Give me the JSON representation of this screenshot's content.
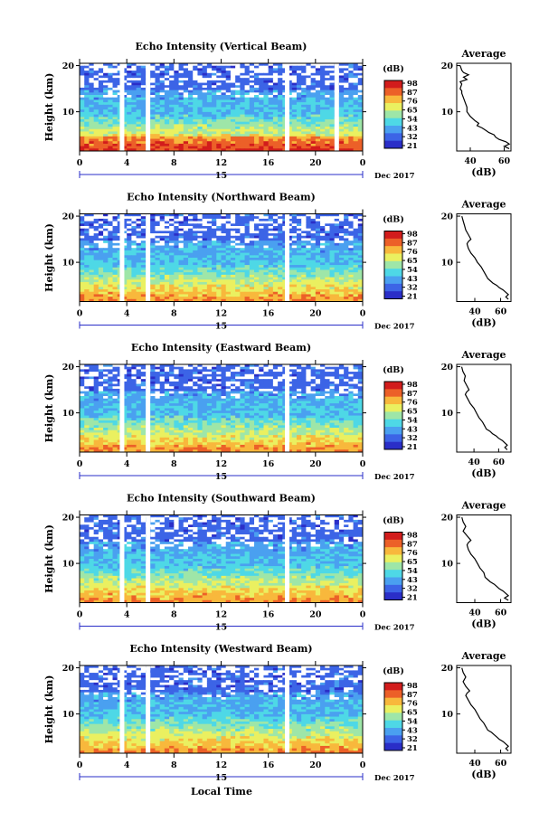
{
  "figure": {
    "xlabel": "Local Time",
    "panels": [
      {
        "title": "Echo Intensity (Vertical Beam)"
      },
      {
        "title": "Echo Intensity (Northward Beam)"
      },
      {
        "title": "Echo Intensity (Eastward Beam)"
      },
      {
        "title": "Echo Intensity (Southward Beam)"
      },
      {
        "title": "Echo Intensity (Westward Beam)"
      }
    ]
  },
  "colorbar": {
    "unit": "(dB)",
    "tick_labels": [
      "98",
      "87",
      "76",
      "65",
      "54",
      "43",
      "32",
      "21"
    ],
    "colors": [
      "#2a2ec8",
      "#3c64e6",
      "#4aa0f0",
      "#4ed8e6",
      "#9ee6a8",
      "#eaf060",
      "#f8b83c",
      "#ec6028",
      "#d21c1c"
    ]
  },
  "chart_data": [
    {
      "type": "heatmap",
      "title": "Echo Intensity (Vertical Beam)",
      "ylabel": "Height (km)",
      "x_tick_labels": [
        "0",
        "4",
        "8",
        "12",
        "16",
        "20",
        "0"
      ],
      "date_label": "15",
      "date_suffix": "Dec 2017",
      "y_tick_labels": [
        "20",
        "10"
      ],
      "xlim": [
        0,
        24
      ],
      "ylim": [
        1.5,
        20.5
      ],
      "data_gaps_hours": [
        3.6,
        5.8,
        17.6,
        21.8
      ],
      "colorbar_range_db": [
        21,
        98
      ],
      "profile": {
        "title": "Average",
        "xlabel": "(dB)",
        "xticks": [
          "40",
          "60"
        ],
        "yticks": [
          "20",
          "10"
        ],
        "xlim": [
          32,
          64
        ],
        "ylim": [
          1.5,
          20.5
        ],
        "heights_km": [
          20,
          19,
          18.5,
          18,
          17.5,
          17,
          16.5,
          16,
          15,
          14.5,
          14,
          13,
          12,
          11,
          10,
          9,
          8,
          7.5,
          7,
          6.5,
          6,
          5.5,
          5,
          4.5,
          4,
          3.5,
          3,
          2.5,
          2
        ],
        "db": [
          34,
          35,
          36,
          39,
          36,
          38,
          34,
          35,
          34,
          35,
          35,
          36,
          37,
          38,
          38,
          40,
          43,
          45,
          44,
          47,
          49,
          51,
          54,
          55,
          57,
          61,
          63,
          60,
          63
        ]
      }
    },
    {
      "type": "heatmap",
      "title": "Echo Intensity (Northward Beam)",
      "ylabel": "Height (km)",
      "x_tick_labels": [
        "0",
        "4",
        "8",
        "12",
        "16",
        "20",
        "0"
      ],
      "date_label": "15",
      "date_suffix": "Dec 2017",
      "y_tick_labels": [
        "20",
        "10"
      ],
      "xlim": [
        0,
        24
      ],
      "ylim": [
        1.5,
        20.5
      ],
      "data_gaps_hours": [
        3.6,
        5.8,
        17.6
      ],
      "colorbar_range_db": [
        21,
        98
      ],
      "profile": {
        "title": "Average",
        "xlabel": "(dB)",
        "xticks": [
          "40",
          "60"
        ],
        "yticks": [
          "20",
          "10"
        ],
        "xlim": [
          26,
          68
        ],
        "ylim": [
          1.5,
          20.5
        ],
        "heights_km": [
          20,
          19,
          18,
          17,
          16,
          15,
          14.5,
          14,
          13,
          12,
          11,
          10,
          9,
          8,
          7,
          6.5,
          6,
          5.5,
          5,
          4.5,
          4,
          3.5,
          3,
          2.5,
          2
        ],
        "db": [
          30,
          31,
          32,
          33,
          35,
          37,
          35,
          34,
          35,
          37,
          40,
          42,
          45,
          47,
          49,
          50,
          52,
          54,
          57,
          59,
          62,
          64,
          66,
          64,
          66
        ]
      }
    },
    {
      "type": "heatmap",
      "title": "Echo Intensity (Eastward Beam)",
      "ylabel": "Height (km)",
      "x_tick_labels": [
        "0",
        "4",
        "8",
        "12",
        "16",
        "20",
        "0"
      ],
      "date_label": "15",
      "date_suffix": "Dec 2017",
      "y_tick_labels": [
        "20",
        "10"
      ],
      "xlim": [
        0,
        24
      ],
      "ylim": [
        1.5,
        20.5
      ],
      "data_gaps_hours": [
        3.6,
        5.8,
        17.6
      ],
      "colorbar_range_db": [
        21,
        98
      ],
      "profile": {
        "title": "Average",
        "xlabel": "(dB)",
        "xticks": [
          "40",
          "60"
        ],
        "yticks": [
          "20",
          "10"
        ],
        "xlim": [
          26,
          70
        ],
        "ylim": [
          1.5,
          20.5
        ],
        "heights_km": [
          20,
          19,
          18,
          17,
          16,
          15,
          14.5,
          14,
          13,
          12,
          11,
          10,
          9,
          8,
          7,
          6.5,
          6,
          5.5,
          5,
          4.5,
          4,
          3.5,
          3,
          2.5,
          2
        ],
        "db": [
          30,
          31,
          33,
          32,
          34,
          36,
          34,
          33,
          35,
          37,
          40,
          42,
          44,
          47,
          49,
          50,
          53,
          55,
          58,
          60,
          63,
          65,
          67,
          65,
          67
        ]
      }
    },
    {
      "type": "heatmap",
      "title": "Echo Intensity (Southward Beam)",
      "ylabel": "Height (km)",
      "x_tick_labels": [
        "0",
        "4",
        "8",
        "12",
        "16",
        "20",
        "0"
      ],
      "date_label": "15",
      "date_suffix": "Dec 2017",
      "y_tick_labels": [
        "20",
        "10"
      ],
      "xlim": [
        0,
        24
      ],
      "ylim": [
        1.5,
        20.5
      ],
      "data_gaps_hours": [
        3.6,
        5.8,
        17.6
      ],
      "colorbar_range_db": [
        21,
        98
      ],
      "profile": {
        "title": "Average",
        "xlabel": "(dB)",
        "xticks": [
          "40",
          "60"
        ],
        "yticks": [
          "20",
          "10"
        ],
        "xlim": [
          26,
          68
        ],
        "ylim": [
          1.5,
          20.5
        ],
        "heights_km": [
          20,
          19,
          18,
          17,
          16,
          15,
          14.5,
          14,
          13,
          12,
          11,
          10,
          9,
          8,
          7,
          6.5,
          6,
          5.5,
          5,
          4.5,
          4,
          3.5,
          3,
          2.5,
          2
        ],
        "db": [
          30,
          31,
          33,
          31,
          34,
          37,
          35,
          34,
          35,
          37,
          40,
          42,
          44,
          47,
          48,
          50,
          52,
          55,
          57,
          59,
          62,
          64,
          66,
          63,
          66
        ]
      }
    },
    {
      "type": "heatmap",
      "title": "Echo Intensity (Westward Beam)",
      "ylabel": "Height (km)",
      "x_tick_labels": [
        "0",
        "4",
        "8",
        "12",
        "16",
        "20",
        "0"
      ],
      "date_label": "15",
      "date_suffix": "Dec 2017",
      "y_tick_labels": [
        "20",
        "10"
      ],
      "xlim": [
        0,
        24
      ],
      "ylim": [
        1.5,
        20.5
      ],
      "data_gaps_hours": [
        3.6,
        5.8,
        17.6
      ],
      "colorbar_range_db": [
        21,
        98
      ],
      "profile": {
        "title": "Average",
        "xlabel": "(dB)",
        "xticks": [
          "40",
          "60"
        ],
        "yticks": [
          "20",
          "10"
        ],
        "xlim": [
          26,
          68
        ],
        "ylim": [
          1.5,
          20.5
        ],
        "heights_km": [
          20,
          19,
          18,
          17,
          16,
          15,
          14.5,
          14,
          13,
          12,
          11,
          10,
          9,
          8,
          7,
          6.5,
          6,
          5.5,
          5,
          4.5,
          4,
          3.5,
          3,
          2.5,
          2
        ],
        "db": [
          30,
          31,
          33,
          31,
          33,
          36,
          34,
          33,
          35,
          37,
          40,
          42,
          44,
          47,
          49,
          50,
          53,
          55,
          57,
          59,
          62,
          64,
          66,
          64,
          66
        ]
      }
    }
  ]
}
